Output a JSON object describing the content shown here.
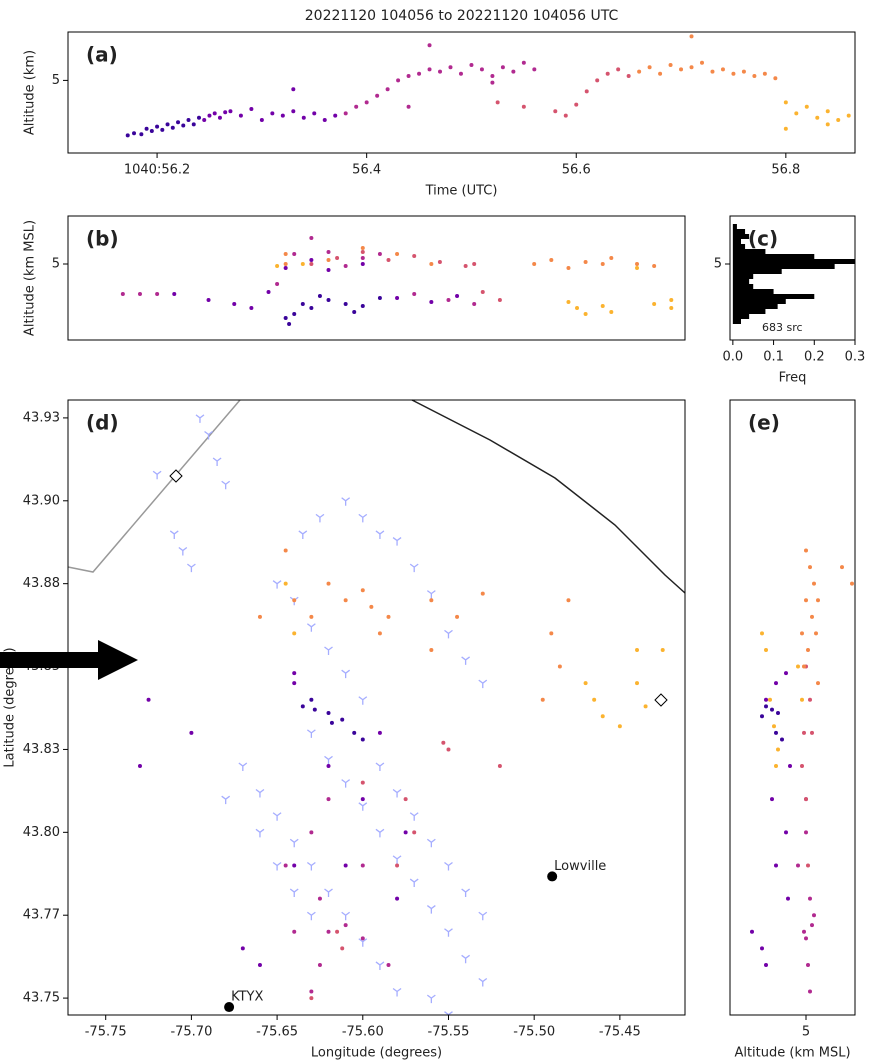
{
  "chart_data": [
    {
      "type": "scatter",
      "title": "20221120 104056 to 20221120 104056 UTC",
      "panel_label": "(a)",
      "xlabel": "Time (UTC)",
      "ylabel": "Altitude (km)",
      "xlim": [
        56.115,
        56.866
      ],
      "ylim": [
        1.7,
        7.2
      ],
      "xticks": [
        {
          "value": 56.2,
          "label": "1040:56.2"
        },
        56.4,
        56.6,
        56.8
      ],
      "yticks": [
        5
      ],
      "series": [
        {
          "color": "#3a049a",
          "x": [
            56.172,
            56.178,
            56.185,
            56.19,
            56.195,
            56.2,
            56.205,
            56.21,
            56.215,
            56.22,
            56.225,
            56.23,
            56.235,
            56.24
          ],
          "values": [
            2.5,
            2.6,
            2.55,
            2.8,
            2.7,
            2.9,
            2.75,
            3.0,
            2.85,
            3.1,
            2.95,
            3.2,
            3.0,
            3.3
          ]
        },
        {
          "color": "#7201a8",
          "x": [
            56.245,
            56.25,
            56.255,
            56.26,
            56.265,
            56.27,
            56.28,
            56.29,
            56.3,
            56.31,
            56.32,
            56.33,
            56.34,
            56.35,
            56.36,
            56.37,
            56.33
          ],
          "values": [
            3.2,
            3.4,
            3.5,
            3.3,
            3.55,
            3.6,
            3.4,
            3.7,
            3.2,
            3.5,
            3.4,
            3.6,
            3.3,
            3.5,
            3.2,
            3.4,
            4.6
          ]
        },
        {
          "color": "#b12a90",
          "x": [
            56.38,
            56.39,
            56.4,
            56.41,
            56.42,
            56.43,
            56.44,
            56.45,
            56.46,
            56.47,
            56.48,
            56.49,
            56.5,
            56.51,
            56.52,
            56.53,
            56.54,
            56.55,
            56.56,
            56.46,
            56.44,
            56.52
          ],
          "values": [
            3.5,
            3.8,
            4.0,
            4.3,
            4.6,
            5.0,
            5.2,
            5.3,
            5.5,
            5.4,
            5.6,
            5.3,
            5.7,
            5.5,
            5.2,
            5.6,
            5.4,
            5.8,
            5.5,
            6.6,
            3.8,
            4.9
          ]
        },
        {
          "color": "#d5546e",
          "x": [
            56.525,
            56.55,
            56.58,
            56.59,
            56.6,
            56.61,
            56.62,
            56.63,
            56.64,
            56.65
          ],
          "values": [
            4.0,
            3.8,
            3.6,
            3.4,
            3.9,
            4.5,
            5.0,
            5.3,
            5.5,
            5.2
          ]
        },
        {
          "color": "#f48849",
          "x": [
            56.66,
            56.67,
            56.68,
            56.69,
            56.7,
            56.71,
            56.72,
            56.73,
            56.74,
            56.75,
            56.76,
            56.77,
            56.78,
            56.79,
            56.71
          ],
          "values": [
            5.4,
            5.6,
            5.3,
            5.7,
            5.5,
            5.6,
            5.8,
            5.4,
            5.5,
            5.3,
            5.4,
            5.2,
            5.3,
            5.1,
            7.0
          ]
        },
        {
          "color": "#fbb32f",
          "x": [
            56.8,
            56.81,
            56.82,
            56.83,
            56.84,
            56.85,
            56.86,
            56.8,
            56.84
          ],
          "values": [
            4.0,
            3.5,
            3.8,
            3.3,
            3.0,
            3.2,
            3.4,
            2.8,
            3.6
          ]
        }
      ]
    },
    {
      "type": "scatter",
      "panel_label": "(b)",
      "ylabel": "Altitude (km MSL)",
      "xlim": [
        -75.772,
        -75.412
      ],
      "ylim": [
        1.2,
        7.4
      ],
      "yticks": [
        5
      ],
      "series": [
        {
          "color": "#3a049a",
          "x": [
            -75.643,
            -75.64,
            -75.635,
            -75.63,
            -75.62,
            -75.61,
            -75.6,
            -75.59,
            -75.605,
            -75.625,
            -75.645
          ],
          "values": [
            2.0,
            2.5,
            3.0,
            2.8,
            3.2,
            3.0,
            2.9,
            3.3,
            2.6,
            3.4,
            2.3
          ]
        },
        {
          "color": "#7201a8",
          "x": [
            -75.71,
            -75.69,
            -75.675,
            -75.665,
            -75.655,
            -75.645,
            -75.63,
            -75.62,
            -75.6,
            -75.58,
            -75.56,
            -75.545
          ],
          "values": [
            3.5,
            3.2,
            3.0,
            2.8,
            3.6,
            4.8,
            5.2,
            4.7,
            5.0,
            3.3,
            3.1,
            3.4
          ]
        },
        {
          "color": "#b12a90",
          "x": [
            -75.74,
            -75.73,
            -75.72,
            -75.65,
            -75.64,
            -75.63,
            -75.62,
            -75.61,
            -75.6,
            -75.59,
            -75.57,
            -75.55,
            -75.535
          ],
          "values": [
            3.5,
            3.5,
            3.5,
            4.0,
            5.5,
            6.3,
            5.6,
            4.9,
            5.3,
            5.5,
            3.5,
            3.2,
            3.0
          ]
        },
        {
          "color": "#d5546e",
          "x": [
            -75.63,
            -75.615,
            -75.6,
            -75.585,
            -75.57,
            -75.555,
            -75.54,
            -75.53,
            -75.52,
            -75.535
          ],
          "values": [
            5.0,
            5.3,
            5.6,
            5.2,
            5.4,
            5.1,
            4.9,
            3.6,
            3.2,
            5.0
          ]
        },
        {
          "color": "#f48849",
          "x": [
            -75.645,
            -75.62,
            -75.6,
            -75.58,
            -75.56,
            -75.5,
            -75.49,
            -75.48,
            -75.47,
            -75.46,
            -75.455,
            -75.44,
            -75.43,
            -75.645
          ],
          "values": [
            5.0,
            5.2,
            5.8,
            5.5,
            5.0,
            5.0,
            5.2,
            4.8,
            5.1,
            5.0,
            5.3,
            5.0,
            4.9,
            5.5
          ]
        },
        {
          "color": "#fbb32f",
          "x": [
            -75.65,
            -75.635,
            -75.475,
            -75.47,
            -75.46,
            -75.455,
            -75.44,
            -75.43,
            -75.42,
            -75.42,
            -75.48
          ],
          "values": [
            4.9,
            5.0,
            2.8,
            2.5,
            2.9,
            2.6,
            4.8,
            3.0,
            2.8,
            3.2,
            3.1
          ]
        }
      ]
    },
    {
      "type": "histogram",
      "panel_label": "(c)",
      "xlabel": "Freq",
      "annotation": "683 src",
      "color": "#000000",
      "xlim": [
        -0.007,
        0.3
      ],
      "ylim": [
        1.2,
        7.4
      ],
      "xticks": [
        {
          "value": 0,
          "label": "0.0"
        },
        0.1,
        0.2,
        0.3
      ],
      "yticks": [
        5
      ],
      "bins": [
        2.0,
        2.25,
        2.5,
        2.75,
        3.0,
        3.25,
        3.5,
        3.75,
        4.0,
        4.25,
        4.5,
        4.75,
        5.0,
        5.25,
        5.5,
        5.75,
        6.0,
        6.25,
        6.5,
        6.75,
        7.0
      ],
      "values": [
        0.02,
        0.04,
        0.08,
        0.11,
        0.13,
        0.2,
        0.1,
        0.05,
        0.04,
        0.05,
        0.12,
        0.25,
        0.3,
        0.2,
        0.08,
        0.03,
        0.02,
        0.04,
        0.03,
        0.01
      ]
    },
    {
      "type": "scatter",
      "panel_label": "(d)",
      "xlabel": "Longitude (degrees)",
      "ylabel": "Latitude (degrees)",
      "xlim": [
        -75.772,
        -75.412
      ],
      "ylim": [
        43.7449,
        43.9304
      ],
      "xticks": [
        -75.75,
        {
          "value": -75.7,
          "label": "-75.70"
        },
        -75.65,
        {
          "value": -75.6,
          "label": "-75.60"
        },
        -75.55,
        {
          "value": -75.5,
          "label": "-75.50"
        },
        -75.45
      ],
      "yticks": [
        {
          "value": 43.925,
          "label": "43.93"
        },
        {
          "value": 43.9,
          "label": "43.90"
        },
        {
          "value": 43.875,
          "label": "43.88"
        },
        43.85,
        {
          "value": 43.825,
          "label": "43.83"
        },
        {
          "value": 43.8,
          "label": "43.80"
        },
        {
          "value": 43.775,
          "label": "43.77"
        },
        43.75
      ],
      "series": [
        {
          "color": "#a5adff",
          "marker": "tri_down",
          "x": [
            -75.695,
            -75.69,
            -75.685,
            -75.68,
            -75.71,
            -75.705,
            -75.7,
            -75.72,
            -75.635,
            -75.625,
            -75.61,
            -75.6,
            -75.59,
            -75.58,
            -75.57,
            -75.56,
            -75.55,
            -75.54,
            -75.53,
            -75.65,
            -75.64,
            -75.63,
            -75.62,
            -75.61,
            -75.6,
            -75.63,
            -75.62,
            -75.61,
            -75.6,
            -75.59,
            -75.58,
            -75.57,
            -75.56,
            -75.55,
            -75.54,
            -75.53,
            -75.67,
            -75.66,
            -75.65,
            -75.64,
            -75.63,
            -75.62,
            -75.61,
            -75.6,
            -75.59,
            -75.58,
            -75.66,
            -75.65,
            -75.64,
            -75.63,
            -75.56,
            -75.55,
            -75.68,
            -75.59,
            -75.58,
            -75.57,
            -75.56,
            -75.55,
            -75.54,
            -75.53
          ],
          "values": [
            43.925,
            43.92,
            43.912,
            43.905,
            43.89,
            43.885,
            43.88,
            43.908,
            43.89,
            43.895,
            43.9,
            43.895,
            43.89,
            43.888,
            43.88,
            43.872,
            43.86,
            43.852,
            43.845,
            43.875,
            43.87,
            43.862,
            43.855,
            43.848,
            43.84,
            43.83,
            43.822,
            43.815,
            43.808,
            43.8,
            43.792,
            43.785,
            43.777,
            43.77,
            43.762,
            43.755,
            43.82,
            43.812,
            43.805,
            43.797,
            43.79,
            43.782,
            43.775,
            43.767,
            43.76,
            43.752,
            43.8,
            43.79,
            43.782,
            43.775,
            43.75,
            43.745,
            43.81,
            43.82,
            43.812,
            43.805,
            43.797,
            43.79,
            43.782,
            43.775
          ]
        },
        {
          "color": "#3a049a",
          "x": [
            -75.635,
            -75.628,
            -75.62,
            -75.612,
            -75.605,
            -75.6,
            -75.63,
            -75.618
          ],
          "values": [
            43.838,
            43.837,
            43.836,
            43.834,
            43.83,
            43.828,
            43.84,
            43.833
          ]
        },
        {
          "color": "#7201a8",
          "x": [
            -75.64,
            -75.64,
            -75.59,
            -75.6,
            -75.62,
            -75.64,
            -75.575,
            -75.58,
            -75.7,
            -75.73,
            -75.725,
            -75.66,
            -75.67,
            -75.61
          ],
          "values": [
            43.848,
            43.845,
            43.83,
            43.81,
            43.82,
            43.79,
            43.8,
            43.78,
            43.83,
            43.82,
            43.84,
            43.76,
            43.765,
            43.79
          ]
        },
        {
          "color": "#b12a90",
          "x": [
            -75.63,
            -75.625,
            -75.62,
            -75.61,
            -75.6,
            -75.625,
            -75.63,
            -75.645,
            -75.6,
            -75.62,
            -75.585,
            -75.64
          ],
          "values": [
            43.8,
            43.78,
            43.77,
            43.772,
            43.768,
            43.76,
            43.752,
            43.79,
            43.79,
            43.81,
            43.76,
            43.77
          ]
        },
        {
          "color": "#d5546e",
          "x": [
            -75.615,
            -75.612,
            -75.57,
            -75.575,
            -75.6,
            -75.55,
            -75.553,
            -75.58,
            -75.52,
            -75.63
          ],
          "values": [
            43.77,
            43.765,
            43.8,
            43.81,
            43.815,
            43.825,
            43.827,
            43.79,
            43.82,
            43.75
          ]
        },
        {
          "color": "#f48849",
          "x": [
            -75.645,
            -75.64,
            -75.62,
            -75.61,
            -75.6,
            -75.595,
            -75.59,
            -75.585,
            -75.66,
            -75.63,
            -75.56,
            -75.545,
            -75.53,
            -75.49,
            -75.485,
            -75.495,
            -75.48,
            -75.56
          ],
          "values": [
            43.885,
            43.87,
            43.875,
            43.87,
            43.873,
            43.868,
            43.86,
            43.865,
            43.865,
            43.865,
            43.87,
            43.865,
            43.872,
            43.86,
            43.85,
            43.84,
            43.87,
            43.855
          ]
        },
        {
          "color": "#fbb32f",
          "x": [
            -75.47,
            -75.465,
            -75.46,
            -75.44,
            -75.44,
            -75.435,
            -75.425,
            -75.45,
            -75.645,
            -75.64
          ],
          "values": [
            43.845,
            43.84,
            43.835,
            43.855,
            43.845,
            43.838,
            43.855,
            43.832,
            43.875,
            43.86
          ]
        }
      ],
      "stations": [
        {
          "name": "KTYX",
          "lon": -75.678,
          "lat": 43.7473
        },
        {
          "name": "Lowville",
          "lon": -75.4895,
          "lat": 43.7867
        }
      ]
    },
    {
      "type": "scatter",
      "panel_label": "(e)",
      "xlabel": "Altitude (km MSL)",
      "xlim": [
        1.2,
        7.45
      ],
      "ylim": [
        43.7449,
        43.9304
      ],
      "xticks": [
        5
      ],
      "series": [
        {
          "color": "#3a049a",
          "x": [
            3.0,
            3.3,
            3.6,
            2.8,
            3.5,
            3.8
          ],
          "values": [
            43.838,
            43.837,
            43.836,
            43.835,
            43.83,
            43.828
          ]
        },
        {
          "color": "#7201a8",
          "x": [
            4.0,
            3.5,
            3.0,
            4.2,
            3.3,
            4.0,
            3.5,
            2.8,
            3.0,
            2.3,
            4.1
          ],
          "values": [
            43.848,
            43.845,
            43.84,
            43.82,
            43.81,
            43.8,
            43.79,
            43.765,
            43.76,
            43.77,
            43.78
          ]
        },
        {
          "color": "#b12a90",
          "x": [
            5.0,
            5.2,
            4.9,
            5.3,
            5.0,
            5.1,
            5.2,
            4.6,
            5.0,
            5.4
          ],
          "values": [
            43.8,
            43.78,
            43.77,
            43.772,
            43.768,
            43.76,
            43.752,
            43.79,
            43.81,
            43.775
          ]
        },
        {
          "color": "#d5546e",
          "x": [
            5.0,
            5.2,
            4.8,
            5.0,
            5.3,
            4.9,
            5.1
          ],
          "values": [
            43.85,
            43.84,
            43.82,
            43.81,
            43.83,
            43.83,
            43.79
          ]
        },
        {
          "color": "#f48849",
          "x": [
            5.0,
            5.2,
            5.4,
            5.6,
            5.0,
            5.3,
            5.5,
            5.1,
            4.9,
            5.6,
            4.8,
            7.3,
            6.8
          ],
          "values": [
            43.885,
            43.88,
            43.875,
            43.87,
            43.87,
            43.865,
            43.86,
            43.855,
            43.85,
            43.845,
            43.86,
            43.875,
            43.88
          ]
        },
        {
          "color": "#fbb32f",
          "x": [
            3.0,
            3.2,
            3.4,
            2.8,
            3.6,
            3.5,
            4.6,
            4.8
          ],
          "values": [
            43.855,
            43.84,
            43.832,
            43.86,
            43.825,
            43.82,
            43.85,
            43.84
          ]
        }
      ]
    }
  ]
}
